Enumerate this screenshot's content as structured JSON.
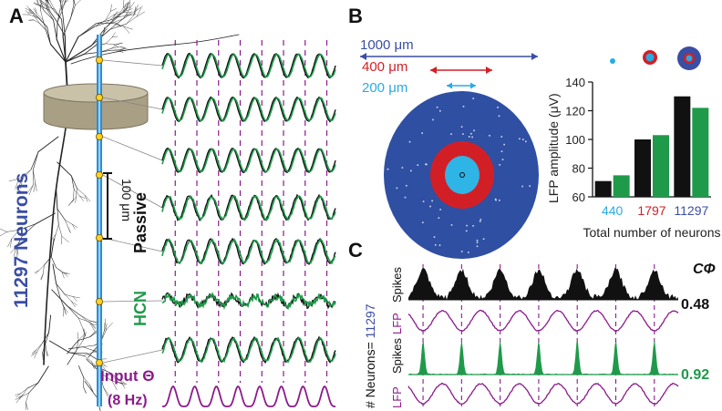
{
  "panel_labels": {
    "a": "A",
    "b": "B",
    "c": "C"
  },
  "panel_a": {
    "population_label": "11297 Neurons",
    "scale_bar_label": "100 μm",
    "condition_passive": "Passive",
    "condition_hcn": "HCN",
    "input_label": "Input Θ",
    "input_freq": "(8 Hz)"
  },
  "panel_b": {
    "radii": [
      {
        "label": "1000 μm",
        "color": "#3a4ea3"
      },
      {
        "label": "400 μm",
        "color": "#d21f26"
      },
      {
        "label": "200 μm",
        "color": "#29abe2"
      }
    ]
  },
  "panel_c": {
    "cphi_label": "CΦ",
    "cphi_passive": "0.48",
    "cphi_hcn": "0.92",
    "neurons_prefix": "# Neurons= ",
    "neurons_count": "11297",
    "spikes_label": "Spikes",
    "lfp_label": "LFP"
  },
  "colors": {
    "passive": "#111111",
    "hcn": "#1f9a4a",
    "input": "#8b1a8b",
    "dendrite_blue": "#2a8fd6",
    "disk_blue": "#2f4fa2",
    "ring_red": "#d21f26",
    "core_cyan": "#2fb4e6"
  },
  "chart_data": {
    "type": "bar",
    "xlabel": "Total number of neurons",
    "ylabel": "LFP amplitude (μV)",
    "ylim": [
      60,
      140
    ],
    "yticks": [
      "60",
      "80",
      "100",
      "120",
      "140"
    ],
    "categories": [
      "440",
      "1797",
      "11297"
    ],
    "category_colors": [
      "#29abe2",
      "#d21f26",
      "#3a4ea3"
    ],
    "series": [
      {
        "values": [
          71,
          100,
          130
        ],
        "color": "#111111"
      },
      {
        "values": [
          75,
          103,
          122
        ],
        "color": "#1f9a4a"
      }
    ],
    "legend": "none"
  }
}
